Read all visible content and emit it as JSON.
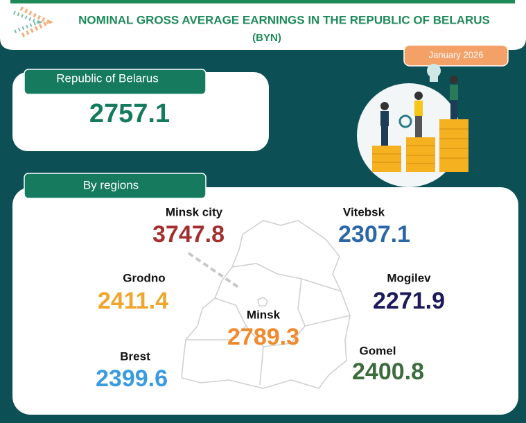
{
  "header": {
    "title": "NOMINAL GROSS AVERAGE EARNINGS IN THE REPUBLIC OF BELARUS",
    "subtitle": "(BYN)"
  },
  "period": "January 2026",
  "national": {
    "label": "Republic of Belarus",
    "value": 2757.1
  },
  "regions": {
    "title": "By regions",
    "items": [
      {
        "name": "Minsk city",
        "value": 3747.8,
        "color": "#a3302e"
      },
      {
        "name": "Vitebsk",
        "value": 2307.1,
        "color": "#2b67a6"
      },
      {
        "name": "Grodno",
        "value": 2411.4,
        "color": "#f0a52c"
      },
      {
        "name": "Mogilev",
        "value": 2271.9,
        "color": "#1c1a5a"
      },
      {
        "name": "Minsk",
        "value": 2789.3,
        "color": "#f08a2c"
      },
      {
        "name": "Brest",
        "value": 2399.6,
        "color": "#3a9be0"
      },
      {
        "name": "Gomel",
        "value": 2400.8,
        "color": "#3c6b3c"
      }
    ]
  }
}
